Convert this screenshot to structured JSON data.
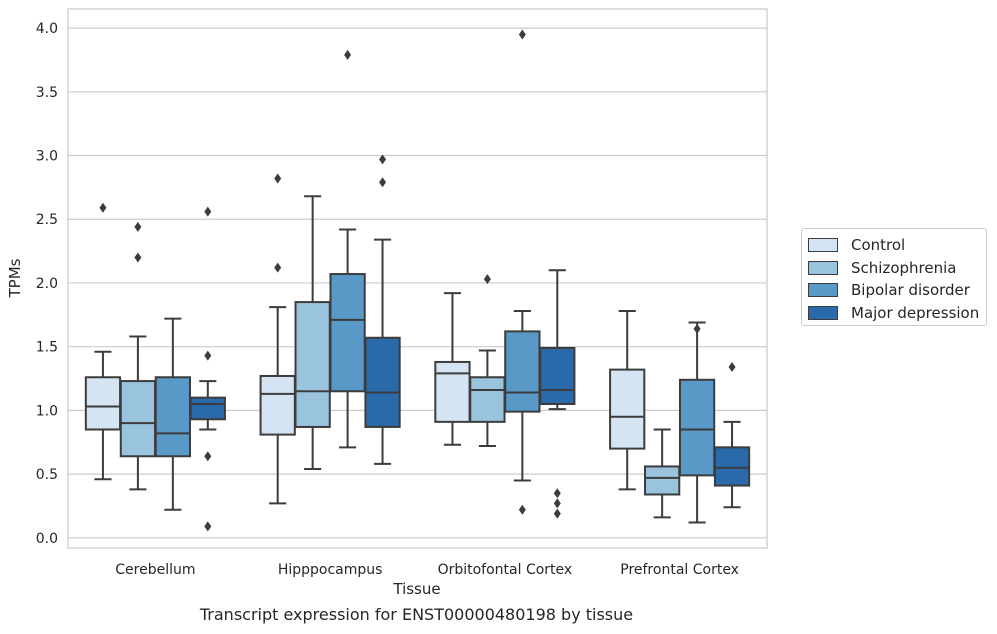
{
  "caption": "Transcript expression for ENST00000480198 by tissue",
  "chart_data": {
    "type": "boxplot",
    "xlabel": "Tissue",
    "ylabel": "TPMs",
    "ylim": [
      -0.08,
      4.15
    ],
    "yticks": [
      0.0,
      0.5,
      1.0,
      1.5,
      2.0,
      2.5,
      3.0,
      3.5,
      4.0
    ],
    "ytick_labels": [
      "0.0",
      "0.5",
      "1.0",
      "1.5",
      "2.0",
      "2.5",
      "3.0",
      "3.5",
      "4.0"
    ],
    "grid": "horizontal",
    "legend_position": "right",
    "categories": [
      "Cerebellum",
      "Hipppocampus",
      "Orbitofontal Cortex",
      "Prefrontal Cortex"
    ],
    "series": [
      {
        "name": "Control",
        "color": "#d5e4f3",
        "boxes": [
          {
            "whislo": 0.46,
            "q1": 0.85,
            "med": 1.03,
            "q3": 1.26,
            "whishi": 1.46,
            "fliers": [
              2.59
            ]
          },
          {
            "whislo": 0.27,
            "q1": 0.81,
            "med": 1.13,
            "q3": 1.27,
            "whishi": 1.81,
            "fliers": [
              2.12,
              2.82
            ]
          },
          {
            "whislo": 0.73,
            "q1": 0.91,
            "med": 1.29,
            "q3": 1.38,
            "whishi": 1.92,
            "fliers": []
          },
          {
            "whislo": 0.38,
            "q1": 0.7,
            "med": 0.95,
            "q3": 1.32,
            "whishi": 1.78,
            "fliers": []
          }
        ]
      },
      {
        "name": "Schizophrenia",
        "color": "#9ac3de",
        "boxes": [
          {
            "whislo": 0.38,
            "q1": 0.64,
            "med": 0.9,
            "q3": 1.23,
            "whishi": 1.58,
            "fliers": [
              2.2,
              2.44
            ]
          },
          {
            "whislo": 0.54,
            "q1": 0.87,
            "med": 1.15,
            "q3": 1.85,
            "whishi": 2.68,
            "fliers": []
          },
          {
            "whislo": 0.72,
            "q1": 0.91,
            "med": 1.16,
            "q3": 1.26,
            "whishi": 1.47,
            "fliers": [
              2.03
            ]
          },
          {
            "whislo": 0.16,
            "q1": 0.34,
            "med": 0.47,
            "q3": 0.56,
            "whishi": 0.85,
            "fliers": []
          }
        ]
      },
      {
        "name": "Bipolar disorder",
        "color": "#5899c8",
        "boxes": [
          {
            "whislo": 0.22,
            "q1": 0.64,
            "med": 0.82,
            "q3": 1.26,
            "whishi": 1.72,
            "fliers": []
          },
          {
            "whislo": 0.71,
            "q1": 1.15,
            "med": 1.71,
            "q3": 2.07,
            "whishi": 2.42,
            "fliers": [
              3.79
            ]
          },
          {
            "whislo": 0.45,
            "q1": 0.99,
            "med": 1.14,
            "q3": 1.62,
            "whishi": 1.78,
            "fliers": [
              0.22,
              3.95
            ]
          },
          {
            "whislo": 0.12,
            "q1": 0.49,
            "med": 0.85,
            "q3": 1.24,
            "whishi": 1.69,
            "fliers": [
              1.64
            ]
          }
        ]
      },
      {
        "name": "Major depression",
        "color": "#2a69aa",
        "boxes": [
          {
            "whislo": 0.85,
            "q1": 0.93,
            "med": 1.05,
            "q3": 1.1,
            "whishi": 1.23,
            "fliers": [
              0.09,
              0.64,
              1.43,
              2.56
            ]
          },
          {
            "whislo": 0.58,
            "q1": 0.87,
            "med": 1.14,
            "q3": 1.57,
            "whishi": 2.34,
            "fliers": [
              2.79,
              2.97
            ]
          },
          {
            "whislo": 1.01,
            "q1": 1.05,
            "med": 1.16,
            "q3": 1.49,
            "whishi": 2.1,
            "fliers": [
              0.19,
              0.27,
              0.35
            ]
          },
          {
            "whislo": 0.24,
            "q1": 0.41,
            "med": 0.55,
            "q3": 0.71,
            "whishi": 0.91,
            "fliers": [
              1.34
            ]
          }
        ]
      }
    ]
  }
}
